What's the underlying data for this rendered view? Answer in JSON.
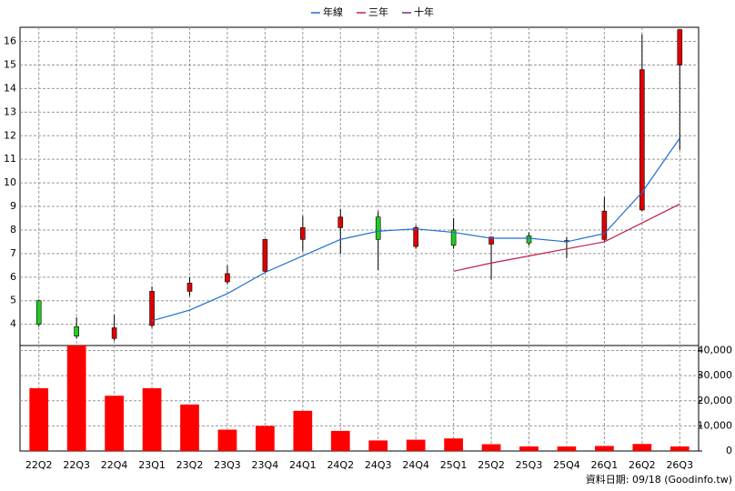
{
  "chart_data": {
    "type": "candlestick",
    "categories": [
      "22Q2",
      "22Q3",
      "22Q4",
      "23Q1",
      "23Q2",
      "23Q3",
      "23Q4",
      "24Q1",
      "24Q2",
      "24Q3",
      "24Q4",
      "25Q1",
      "25Q2",
      "25Q3",
      "25Q4",
      "26Q1",
      "26Q2",
      "26Q3"
    ],
    "open": [
      5.0,
      3.9,
      3.4,
      3.95,
      5.4,
      5.8,
      6.25,
      7.6,
      8.1,
      8.55,
      7.3,
      8.0,
      7.4,
      7.75,
      7.5,
      7.6,
      8.85,
      15.0
    ],
    "high": [
      5.05,
      4.3,
      4.4,
      5.6,
      6.0,
      6.5,
      7.6,
      8.6,
      8.9,
      8.8,
      8.2,
      8.5,
      7.7,
      7.9,
      7.7,
      9.4,
      16.3,
      16.5
    ],
    "low": [
      3.9,
      3.4,
      3.3,
      3.85,
      5.2,
      5.7,
      6.2,
      7.1,
      7.0,
      6.3,
      7.2,
      7.2,
      5.9,
      7.35,
      6.8,
      7.5,
      8.8,
      11.4
    ],
    "close": [
      4.0,
      3.5,
      3.85,
      5.4,
      5.75,
      6.15,
      7.6,
      8.1,
      8.55,
      7.6,
      8.1,
      7.35,
      7.7,
      7.45,
      7.55,
      8.8,
      14.8,
      16.5
    ],
    "up_color": "#e00000",
    "down_color": "#22cc22",
    "series": [
      {
        "name": "年線",
        "color": "#1f6fd0",
        "values": [
          null,
          null,
          null,
          4.15,
          4.6,
          5.3,
          6.2,
          6.9,
          7.6,
          7.95,
          8.05,
          7.9,
          7.65,
          7.65,
          7.5,
          7.85,
          9.6,
          11.9
        ]
      },
      {
        "name": "三年",
        "color": "#c0204a",
        "values": [
          null,
          null,
          null,
          null,
          null,
          null,
          null,
          null,
          null,
          null,
          null,
          6.25,
          6.6,
          6.9,
          7.2,
          7.5,
          8.3,
          9.1
        ]
      },
      {
        "name": "十年",
        "color": "#7a2a8a",
        "values": [
          null,
          null,
          null,
          null,
          null,
          null,
          null,
          null,
          null,
          null,
          null,
          null,
          null,
          null,
          null,
          null,
          null,
          null
        ]
      }
    ],
    "volume": {
      "color": "#ff0000",
      "axis": "y2",
      "values": [
        25000,
        42000,
        22000,
        25000,
        18500,
        8500,
        10000,
        16000,
        8000,
        4200,
        4500,
        5000,
        2700,
        1800,
        1800,
        2000,
        2800,
        1800
      ]
    },
    "ylim": [
      3.1,
      16.6
    ],
    "yticks": [
      4,
      5,
      6,
      7,
      8,
      9,
      10,
      11,
      12,
      13,
      14,
      15,
      16
    ],
    "y2lim": [
      0,
      42000
    ],
    "y2ticks": [
      0,
      {
        "value": 10000,
        "label": "10,000"
      },
      {
        "value": 20000,
        "label": "20,000"
      },
      {
        "value": 30000,
        "label": "30,000"
      },
      {
        "value": 40000,
        "label": "40,000"
      }
    ],
    "grid": true,
    "footer": "資料日期: 09/18 (Goodinfo.tw)"
  }
}
